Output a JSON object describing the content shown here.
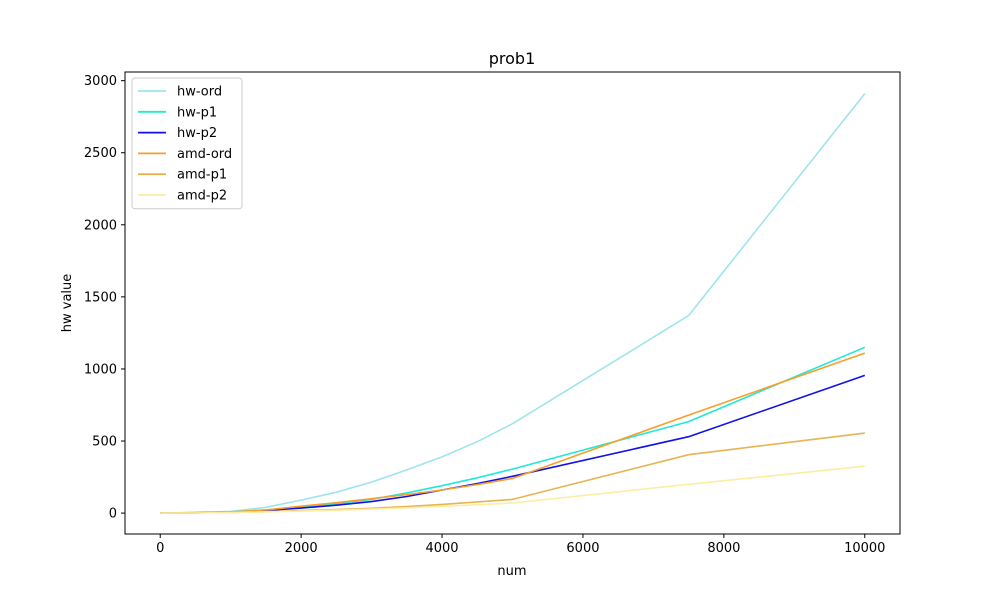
{
  "chart_data": {
    "type": "line",
    "title": "prob1",
    "xlabel": "num",
    "ylabel": "hw value",
    "xlim": [
      -500,
      10500
    ],
    "ylim": [
      -145,
      3060
    ],
    "xticks": [
      0,
      2000,
      4000,
      6000,
      8000,
      10000
    ],
    "yticks": [
      0,
      500,
      1000,
      1500,
      2000,
      2500,
      3000
    ],
    "grid": false,
    "legend_position": "top-left",
    "series": [
      {
        "name": "hw-ord",
        "color": "#9ee4ee",
        "x": [
          0,
          500,
          1000,
          1500,
          2000,
          2500,
          3000,
          3500,
          4000,
          4500,
          5000,
          7500,
          10000
        ],
        "y": [
          0,
          5,
          12,
          40,
          90,
          145,
          215,
          300,
          390,
          495,
          620,
          1370,
          2910
        ]
      },
      {
        "name": "hw-p1",
        "color": "#20e8d8",
        "x": [
          0,
          500,
          1000,
          1500,
          2000,
          2500,
          3000,
          3500,
          4000,
          4500,
          5000,
          7500,
          10000
        ],
        "y": [
          0,
          3,
          8,
          22,
          40,
          65,
          95,
          140,
          190,
          245,
          305,
          635,
          1150
        ]
      },
      {
        "name": "hw-p2",
        "color": "#1212e6",
        "x": [
          0,
          500,
          1000,
          1500,
          2000,
          2500,
          3000,
          3500,
          4000,
          4500,
          5000,
          7500,
          10000
        ],
        "y": [
          0,
          2,
          6,
          18,
          35,
          55,
          80,
          115,
          160,
          205,
          255,
          530,
          955
        ]
      },
      {
        "name": "amd-ord",
        "color": "#f5a02a",
        "x": [
          0,
          500,
          1000,
          1500,
          2000,
          2500,
          3000,
          3500,
          4000,
          4500,
          5000,
          7500,
          10000
        ],
        "y": [
          0,
          3,
          8,
          22,
          48,
          72,
          100,
          128,
          160,
          198,
          240,
          680,
          1110
        ]
      },
      {
        "name": "amd-p1",
        "color": "#e6b450",
        "x": [
          0,
          500,
          1000,
          1500,
          2000,
          2500,
          3000,
          3500,
          4000,
          4500,
          5000,
          7500,
          10000
        ],
        "y": [
          0,
          2,
          5,
          10,
          18,
          25,
          33,
          45,
          60,
          78,
          95,
          405,
          555
        ]
      },
      {
        "name": "amd-p2",
        "color": "#fbeea0",
        "x": [
          0,
          500,
          1000,
          1500,
          2000,
          2500,
          3000,
          3500,
          4000,
          4500,
          5000,
          7500,
          10000
        ],
        "y": [
          0,
          1,
          4,
          8,
          14,
          20,
          28,
          37,
          47,
          58,
          70,
          200,
          325
        ]
      }
    ]
  }
}
